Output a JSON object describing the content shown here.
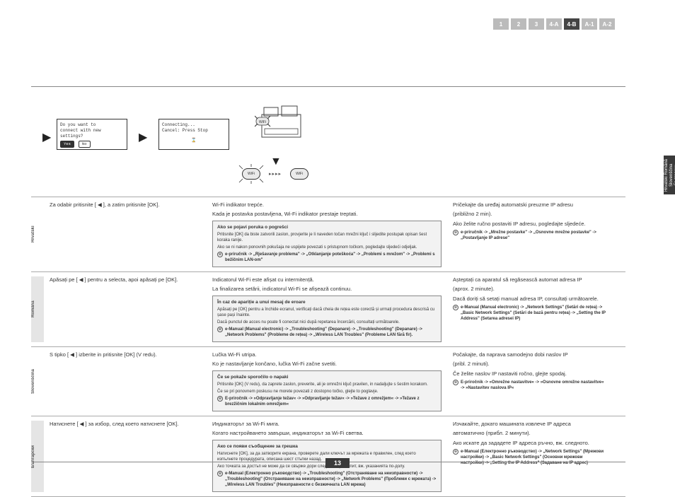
{
  "nav": {
    "items": [
      "1",
      "2",
      "3",
      "4-A",
      "4-B",
      "A-1",
      "A-2"
    ],
    "active_index": 4
  },
  "side_tab": "Hrvatski Română\nSlovenščina Български",
  "lcd1": {
    "line1": "Do you want to",
    "line2": "connect with new",
    "line3": "settings?",
    "yes": "Yes",
    "no": "No"
  },
  "lcd2": {
    "line1": "Connecting...",
    "line2": "Cancel: Press Stop"
  },
  "dots": "▸▸▸▸",
  "languages": [
    {
      "name": "Hrvatski",
      "shade": false,
      "col1": "Za odabir pritisnite [ ◀ ], a zatim pritisnite [OK].",
      "col2_lines": [
        "Wi-Fi indikator trepće.",
        "Kada je postavka postavljena, Wi-Fi indikator prestaje treptati."
      ],
      "note_title": "Ako se pojavi poruka o pogrešci",
      "note_body1": "Pritisnite [OK] da biste zatvorili zaslon, provjerite je li naveden točan mrežni ključ i slijedite postupak opisan šest koraka ranije.",
      "note_body2": "Ako se ni nakon ponovnih pokušaja ne uspijete povezati s pristupnom točkom, pogledajte sljedeći odjeljak.",
      "note_ref": "e-priručnik -> „Rješavanje problema\" -> „Otklanjanje poteškoća\" -> „Problemi s mrežom\" -> „Problemi s bežičnim LAN-om\"",
      "col3_top": [
        "Pričekajte da uređaj automatski preuzme IP adresu",
        "(približno 2 min)."
      ],
      "col3_mid": "Ako želite ručno postaviti IP adresu, pogledajte sljedeće.",
      "col3_ref": "e-priručnik -> „Mrežne postavke\" -> „Osnovne mrežne postavke\" -> „Postavljanje IP adrese\""
    },
    {
      "name": "Română",
      "shade": true,
      "col1": "Apăsați pe [ ◀ ] pentru a selecta, apoi apăsați pe [OK].",
      "col2_lines": [
        "Indicatorul Wi-Fi este afișat cu intermitență.",
        "La finalizarea setării, indicatorul Wi-Fi se afișează continuu."
      ],
      "note_title": "În caz de apariție a unui mesaj de eroare",
      "note_body1": "Apăsați pe [OK] pentru a închide ecranul, verificați dacă cheia de rețea este corectă și urmați procedura descrisă cu șase pași înainte.",
      "note_body2": "Dacă punctul de acces nu poate fi conectat nici după repetarea încercării, consultați următoarele.",
      "note_ref": "e-Manual (Manual electronic) -> „Troubleshooting\" (Depanare) -> „Troubleshooting\" (Depanare) -> „Network Problems\" (Probleme de rețea) -> „Wireless LAN Troubles\" (Probleme LAN fără fir).",
      "col3_top": [
        "Așteptați ca aparatul să regăsească automat adresa IP",
        "(aprox. 2 minute)."
      ],
      "col3_mid": "Dacă doriți să setați manual adresa IP, consultați următoarele.",
      "col3_ref": "e-Manual (Manual electronic) -> „Network Settings\" (Setări de rețea) -> „Basic Network Settings\" (Setări de bază pentru rețea) -> „Setting the IP Address\" (Setarea adresei IP)"
    },
    {
      "name": "Slovenščina",
      "shade": false,
      "col1": "S tipko [ ◀ ] izberite in pritisnite [OK] (V redu).",
      "col2_lines": [
        "Lučka Wi-Fi utripa.",
        "Ko je nastavljanje končano, lučka Wi-Fi začne svetiti."
      ],
      "note_title": "Če se pokaže sporočilo o napaki",
      "note_body1": "Pritisnite [OK] (V redu), da zaprete zaslon, preverite, ali je omrežni ključ pravilen, in nadaljujte s šestim korakom.",
      "note_body2": "Če se pri ponovnem poskusu ne morete povezati z dostopno točko, glejte to poglavje.",
      "note_ref": "E-priročnik -> »Odpravljanje težav« -> »Odpravljanje težav« -> »Težave z omrežjem« -> »Težave z brezžičnim lokalnim omrežjem«",
      "col3_top": [
        "Počakajte, da naprava samodejno dobi naslov IP",
        "(pribl. 2 minuti)."
      ],
      "col3_mid": "Če želite naslov IP nastaviti ročno, glejte spodaj.",
      "col3_ref": "E-priročnik -> »Omrežne nastavitve« -> »Osnovne omrežne nastavitve« -> »Nastavitev naslova IP«"
    },
    {
      "name": "Български",
      "shade": true,
      "col1": "Натиснете [ ◀ ] за избор, след което натиснете [OK].",
      "col2_lines": [
        "Индикаторът за Wi-Fi мига.",
        "Когато настройването завърши, индикаторът за Wi-Fi светва."
      ],
      "note_title": "Ако се появи съобщение за грешка",
      "note_body1": "Натиснете [OK], за да затворите екрана, проверете дали ключът за мрежата е правилен, след което изпълнете процедурата, описана шест стъпки назад.",
      "note_body2": "Ако точката за достъп не може да се свърже дори след повторен опит, вж. указанията по-долу.",
      "note_ref": "e-Manual (Електронно ръководство) -> „Troubleshooting\" (Отстраняване на неизправности) -> „Troubleshooting\" (Отстраняване на неизправности) -> „Network Problems\" (Проблеми с мрежата) -> „Wireless LAN Troubles\" (Неизправности с безжичната LAN мрежа)",
      "col3_top": [
        "Изчакайте, докато машината извлече IP адреса",
        "автоматично (прибл. 2 минути)."
      ],
      "col3_mid": "Ако искате да зададете IP адреса ръчно, вж. следното.",
      "col3_ref": "e-Manual (Електронно ръководство) -> „Network Settings\" (Мрежови настройки) -> „Basic Network Settings\" (Основни мрежови настройки) -> „Setting the IP Address\" (Задаване на IP адрес)"
    }
  ],
  "page_number": "13"
}
